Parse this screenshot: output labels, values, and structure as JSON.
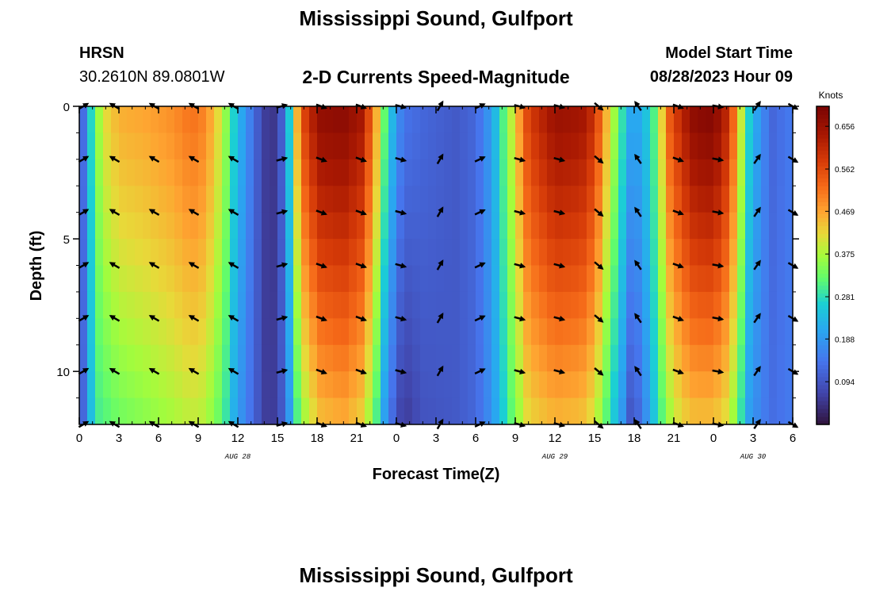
{
  "page": {
    "title": "Mississippi Sound, Gulfport",
    "station_id": "HRSN",
    "station_coords": "30.2610N  89.0801W",
    "subtitle": "2-D Currents Speed-Magnitude",
    "model_start_label": "Model Start Time",
    "model_start_value": "08/28/2023 Hour 09",
    "bottom_title": "Mississippi Sound, Gulfport"
  },
  "chart_data": {
    "type": "heatmap",
    "title": "2-D Currents Speed-Magnitude",
    "xlabel": "Forecast Time(Z)",
    "ylabel": "Depth (ft)",
    "x_range_hours": [
      0,
      54
    ],
    "y_range_ft": [
      0,
      12
    ],
    "x_tick_hours": [
      0,
      3,
      6,
      9,
      12,
      15,
      18,
      21,
      24,
      27,
      30,
      33,
      36,
      39,
      42,
      45,
      48,
      51,
      54
    ],
    "x_tick_labels": [
      "0",
      "3",
      "6",
      "9",
      "12",
      "15",
      "18",
      "21",
      "0",
      "3",
      "6",
      "9",
      "12",
      "15",
      "18",
      "21",
      "0",
      "3",
      "6"
    ],
    "y_ticks": [
      0,
      5,
      10
    ],
    "y_tick_labels": [
      "0",
      "5",
      "10"
    ],
    "date_labels": [
      {
        "text": "AUG 28",
        "hour": 12
      },
      {
        "text": "AUG 29",
        "hour": 36
      },
      {
        "text": "AUG 30",
        "hour": 51
      }
    ],
    "colorbar": {
      "label": "Knots",
      "min": 0.0,
      "max": 0.7,
      "tick_values": [
        0.094,
        0.188,
        0.281,
        0.375,
        0.469,
        0.562,
        0.656
      ],
      "tick_labels": [
        "0.094",
        "0.188",
        "0.281",
        "0.375",
        "0.469",
        "0.562",
        "0.656"
      ]
    },
    "speed_profile": {
      "hours": [
        0,
        0.6,
        1.0,
        1.4,
        2.0,
        3.0,
        5.0,
        7.0,
        8.5,
        9.5,
        10.3,
        11.0,
        11.7,
        12.4,
        13.2,
        14.0,
        14.8,
        15.6,
        16.3,
        17.2,
        18.3,
        20.0,
        21.5,
        22.5,
        23.3,
        24.5,
        26.0,
        28.5,
        30.0,
        31.2,
        32.5,
        34.0,
        36.0,
        38.0,
        39.0,
        40.0,
        41.0,
        41.8,
        42.6,
        43.6,
        44.6,
        45.6,
        46.6,
        48.0,
        49.2,
        50.0,
        50.6,
        51.5,
        52.5,
        54.0
      ],
      "knots_at_0ft": [
        0.06,
        0.2,
        0.3,
        0.36,
        0.42,
        0.46,
        0.47,
        0.49,
        0.52,
        0.5,
        0.44,
        0.37,
        0.27,
        0.2,
        0.13,
        0.06,
        0.05,
        0.14,
        0.42,
        0.6,
        0.67,
        0.68,
        0.64,
        0.46,
        0.28,
        0.14,
        0.12,
        0.1,
        0.12,
        0.2,
        0.36,
        0.58,
        0.66,
        0.65,
        0.6,
        0.44,
        0.3,
        0.2,
        0.22,
        0.32,
        0.54,
        0.62,
        0.68,
        0.69,
        0.6,
        0.42,
        0.28,
        0.18,
        0.12,
        0.15
      ],
      "knots_at_12ft": [
        0.06,
        0.18,
        0.26,
        0.3,
        0.31,
        0.33,
        0.35,
        0.37,
        0.39,
        0.38,
        0.34,
        0.3,
        0.22,
        0.17,
        0.12,
        0.06,
        0.06,
        0.12,
        0.28,
        0.38,
        0.44,
        0.46,
        0.42,
        0.3,
        0.16,
        0.05,
        0.09,
        0.1,
        0.12,
        0.18,
        0.3,
        0.42,
        0.45,
        0.44,
        0.4,
        0.3,
        0.2,
        0.08,
        0.14,
        0.26,
        0.36,
        0.42,
        0.44,
        0.44,
        0.4,
        0.3,
        0.2,
        0.16,
        0.13,
        0.15
      ]
    },
    "vector_hours": [
      0.3,
      2.7,
      5.7,
      8.7,
      11.7,
      15.3,
      18.3,
      21.3,
      24.3,
      27.3,
      30.3,
      33.3,
      36.3,
      39.3,
      42.3,
      45.3,
      48.3,
      51.3,
      54.0
    ],
    "vector_depths_ft": [
      0,
      2,
      4,
      6,
      8,
      10,
      12
    ],
    "vector_directions_deg": [
      330,
      210,
      210,
      210,
      210,
      345,
      20,
      20,
      15,
      300,
      335,
      15,
      15,
      40,
      235,
      20,
      10,
      305,
      30
    ]
  }
}
